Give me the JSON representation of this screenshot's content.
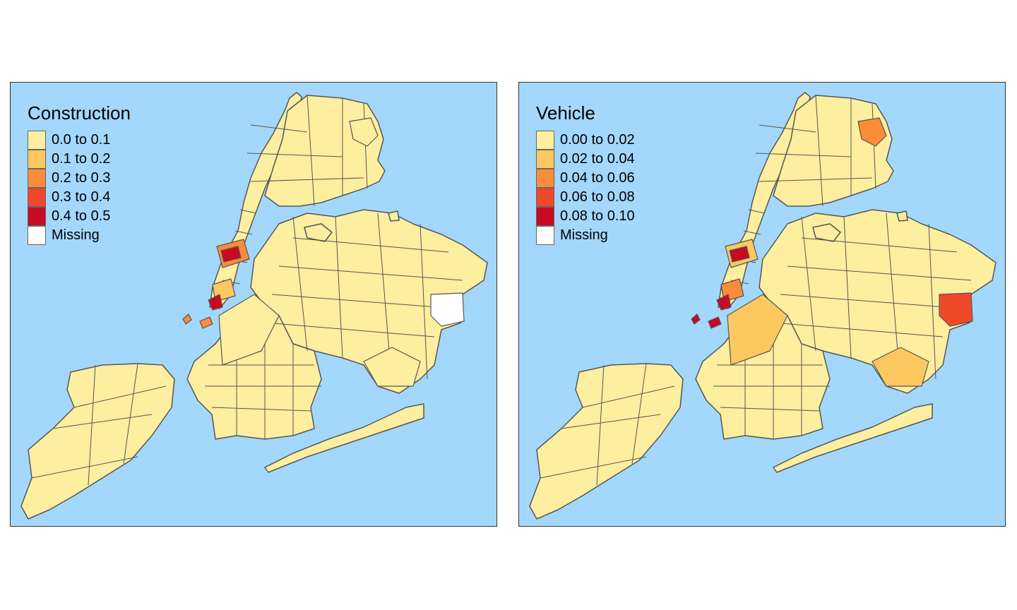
{
  "panels": [
    {
      "title": "Construction",
      "legend": [
        {
          "label": "0.0 to 0.1",
          "color": "#FEEE9F"
        },
        {
          "label": "0.1 to 0.2",
          "color": "#FDC860"
        },
        {
          "label": "0.2 to 0.3",
          "color": "#FB8C3A"
        },
        {
          "label": "0.3 to 0.4",
          "color": "#F0482A"
        },
        {
          "label": "0.4 to 0.5",
          "color": "#C80A22"
        },
        {
          "label": "Missing",
          "color": "#FFFFFF"
        }
      ],
      "highlights": {
        "midtown": "#C80A22",
        "midtown_ring": "#FB8C3A",
        "lower_manhattan": "#C80A22",
        "lower_manhattan_ring": "#FDC860",
        "islands": "#FB8C3A",
        "bronx_east": "#FEEE9F",
        "brooklyn_west": "#FEEE9F",
        "queens_south": "#FEEE9F",
        "queens_east": "#FFFFFF"
      }
    },
    {
      "title": "Vehicle",
      "legend": [
        {
          "label": "0.00 to 0.02",
          "color": "#FEEE9F"
        },
        {
          "label": "0.02 to 0.04",
          "color": "#FDC860"
        },
        {
          "label": "0.04 to 0.06",
          "color": "#FB8C3A"
        },
        {
          "label": "0.06 to 0.08",
          "color": "#F0482A"
        },
        {
          "label": "0.08 to 0.10",
          "color": "#C80A22"
        },
        {
          "label": "Missing",
          "color": "#FFFFFF"
        }
      ],
      "highlights": {
        "midtown": "#C80A22",
        "midtown_ring": "#FDC860",
        "lower_manhattan": "#C80A22",
        "lower_manhattan_ring": "#FB8C3A",
        "islands": "#C80A22",
        "bronx_east": "#FB8C3A",
        "brooklyn_west": "#FDC860",
        "queens_south": "#FDC860",
        "queens_east": "#F0482A"
      }
    }
  ],
  "colors": {
    "water": "#A3D8FC",
    "land": "#FEEE9F",
    "border": "#555555",
    "missing": "#FFFFFF"
  }
}
